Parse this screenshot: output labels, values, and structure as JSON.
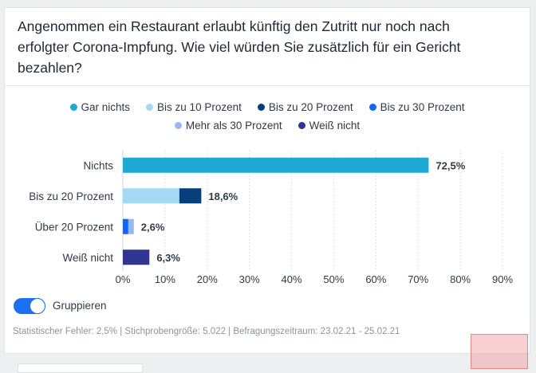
{
  "title": "Angenommen ein Restaurant erlaubt künftig den Zutritt nur noch nach erfolgter Corona-Impfung. Wie viel würden Sie zusätzlich für ein Gericht bezahlen?",
  "legend": [
    {
      "label": "Gar nichts",
      "color": "#1ea8d4"
    },
    {
      "label": "Bis zu 10 Prozent",
      "color": "#a3d9f2"
    },
    {
      "label": "Bis zu 20 Prozent",
      "color": "#063f7b"
    },
    {
      "label": "Bis zu 30 Prozent",
      "color": "#1466f0"
    },
    {
      "label": "Mehr als 30 Prozent",
      "color": "#97b8f5"
    },
    {
      "label": "Weiß nicht",
      "color": "#2f3591"
    }
  ],
  "toggle": {
    "label": "Gruppieren",
    "on": true
  },
  "footer": "Statistischer Fehler: 2,5% | Stichprobengröße: 5.022 | Befragungszeitraum: 23.02.21 - 25.02.21",
  "chart_data": {
    "type": "bar",
    "orientation": "horizontal",
    "stacked": true,
    "title": "Angenommen ein Restaurant erlaubt künftig den Zutritt nur noch nach erfolgter Corona-Impfung. Wie viel würden Sie zusätzlich für ein Gericht bezahlen?",
    "categories": [
      "Nichts",
      "Bis zu 20 Prozent",
      "Über 20 Prozent",
      "Weiß nicht"
    ],
    "series": [
      {
        "name": "Gar nichts",
        "color": "#1ea8d4",
        "values": [
          72.5,
          0,
          0,
          0
        ]
      },
      {
        "name": "Bis zu 10 Prozent",
        "color": "#a3d9f2",
        "values": [
          0,
          13.4,
          0,
          0
        ]
      },
      {
        "name": "Bis zu 20 Prozent",
        "color": "#063f7b",
        "values": [
          0,
          5.2,
          0,
          0
        ]
      },
      {
        "name": "Bis zu 30 Prozent",
        "color": "#1466f0",
        "values": [
          0,
          0,
          1.3,
          0
        ]
      },
      {
        "name": "Mehr als 30 Prozent",
        "color": "#97b8f5",
        "values": [
          0,
          0,
          1.3,
          0
        ]
      },
      {
        "name": "Weiß nicht",
        "color": "#2f3591",
        "values": [
          0,
          0,
          0,
          6.3
        ]
      }
    ],
    "totals_labels": [
      "72,5%",
      "18,6%",
      "2,6%",
      "6,3%"
    ],
    "totals": [
      72.5,
      18.6,
      2.6,
      6.3
    ],
    "xlim": [
      0,
      90
    ],
    "xticks": [
      0,
      10,
      20,
      30,
      40,
      50,
      60,
      70,
      80,
      90
    ],
    "xtick_labels": [
      "0%",
      "10%",
      "20%",
      "30%",
      "40%",
      "50%",
      "60%",
      "70%",
      "80%",
      "90%"
    ],
    "grid": true,
    "legend_position": "top"
  }
}
